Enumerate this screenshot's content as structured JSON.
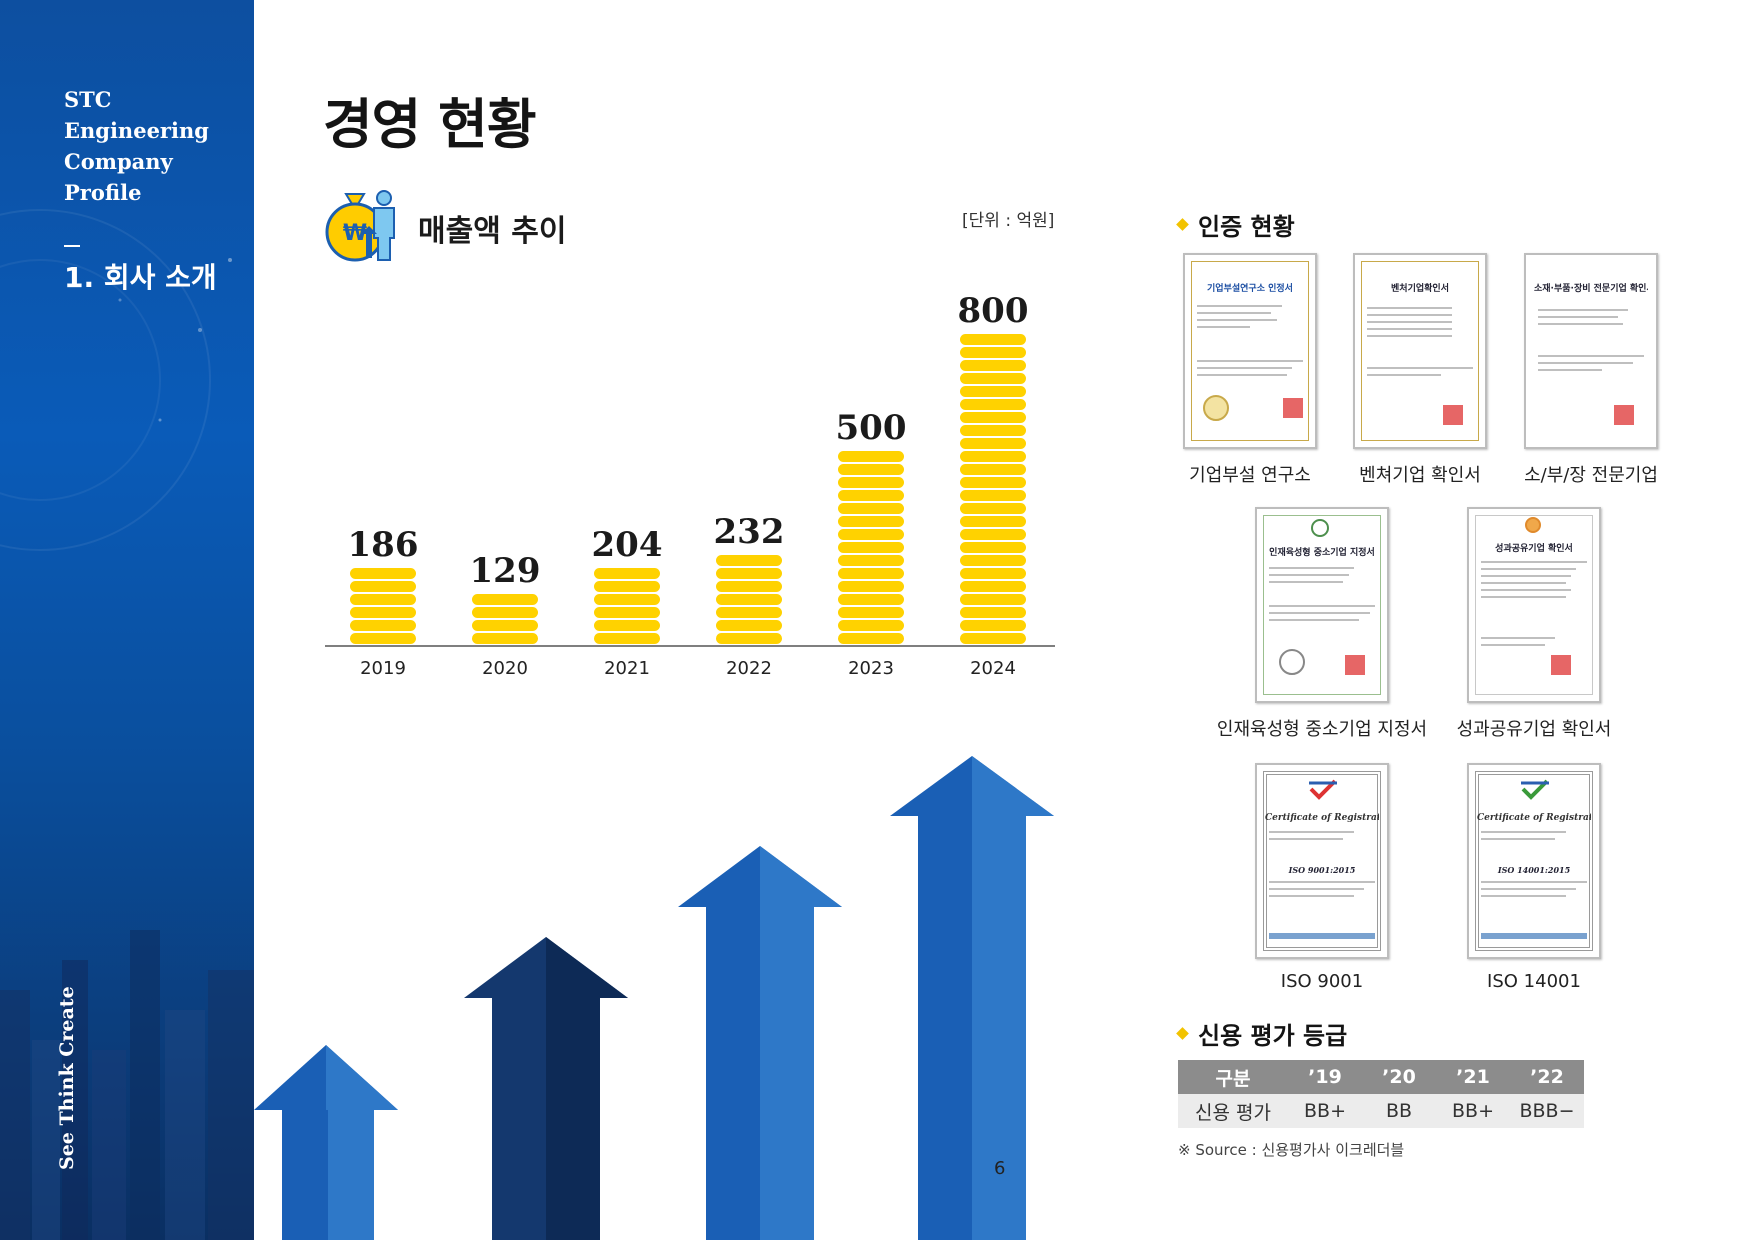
{
  "sidebar": {
    "brand_lines": [
      "STC",
      "Engineering",
      "Company",
      "Profile"
    ],
    "section": "1. 회사 소개",
    "slogan": "See Think Create"
  },
  "title": "경영 현황",
  "sales": {
    "title": "매출액 추이",
    "unit": "[단위 : 억원]"
  },
  "chart_data": {
    "type": "bar",
    "categories": [
      "2019",
      "2020",
      "2021",
      "2022",
      "2023",
      "2024"
    ],
    "values": [
      186,
      129,
      204,
      232,
      500,
      800
    ],
    "ylim": [
      0,
      800
    ],
    "bar_color": "#ffd200"
  },
  "certifications": {
    "title": "인증 현황",
    "items": [
      {
        "label": "기업부설 연구소",
        "doc_title": "기업부설연구소 인정서"
      },
      {
        "label": "벤쳐기업 확인서",
        "doc_title": "벤처기업확인서"
      },
      {
        "label": "소/부/장 전문기업",
        "doc_title": "소재·부품·장비 전문기업 확인서"
      },
      {
        "label": "인재육성형 중소기업 지정서",
        "doc_title": "인재육성형 중소기업 지정서"
      },
      {
        "label": "성과공유기업 확인서",
        "doc_title": "성과공유기업 확인서"
      },
      {
        "label": "ISO 9001",
        "doc_title": "Certificate of Registration",
        "standard": "ISO 9001:2015"
      },
      {
        "label": "ISO 14001",
        "doc_title": "Certificate of Registration",
        "standard": "ISO 14001:2015"
      }
    ]
  },
  "credit": {
    "title": "신용 평가 등급",
    "header": [
      "구분",
      "’19",
      "’20",
      "’21",
      "’22"
    ],
    "row": [
      "신용 평가",
      "BB+",
      "BB",
      "BB+",
      "BBB−"
    ],
    "source": "※ Source : 신용평가사 이크레더블"
  },
  "page_number": "6",
  "colors": {
    "sidebar_blue": "#0a5bb8",
    "coin_yellow": "#ffd200",
    "accent_diamond": "#f2c300",
    "arrow_blue": "#1565c0",
    "arrow_navy": "#0f2f5f"
  }
}
